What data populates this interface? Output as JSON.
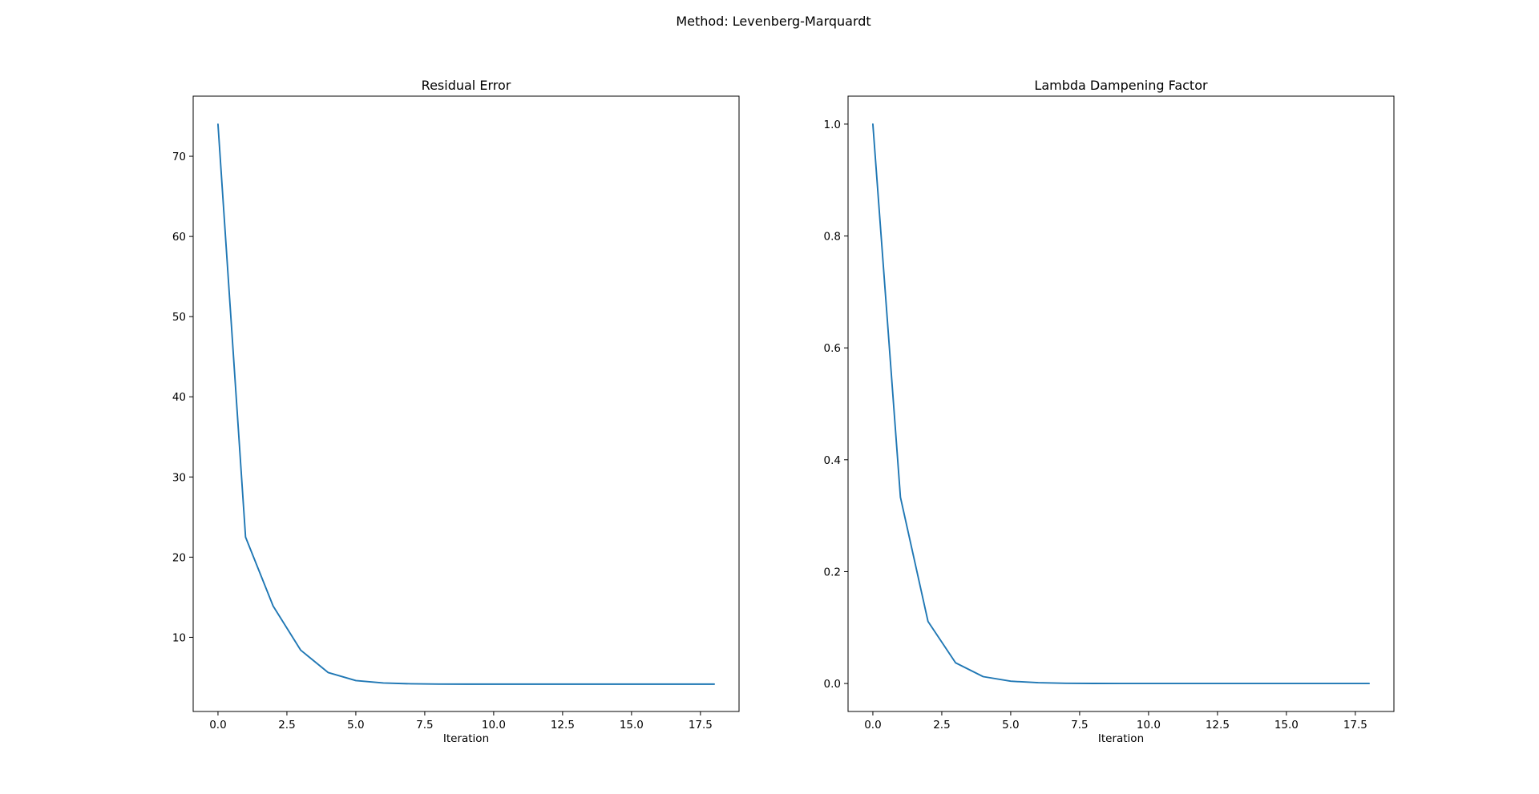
{
  "figure": {
    "suptitle": "Method: Levenberg-Marquardt"
  },
  "chart_data": [
    {
      "type": "line",
      "title": "Residual Error",
      "xlabel": "Iteration",
      "ylabel": "",
      "xlim": [
        -0.9,
        18.9
      ],
      "ylim": [
        0.75,
        77.5
      ],
      "xticks": [
        0,
        2.5,
        5,
        7.5,
        10,
        12.5,
        15,
        17.5
      ],
      "xtick_labels": [
        "0.0",
        "2.5",
        "5.0",
        "7.5",
        "10.0",
        "12.5",
        "15.0",
        "17.5"
      ],
      "yticks": [
        10,
        20,
        30,
        40,
        50,
        60,
        70
      ],
      "ytick_labels": [
        "10",
        "20",
        "30",
        "40",
        "50",
        "60",
        "70"
      ],
      "grid": false,
      "color": "#1f77b4",
      "series": [
        {
          "x": [
            0,
            1,
            2,
            3,
            4,
            5,
            6,
            7,
            8,
            9,
            10,
            11,
            12,
            13,
            14,
            15,
            16,
            17,
            18
          ],
          "values": [
            74.0,
            22.5,
            13.9,
            8.4,
            5.6,
            4.6,
            4.3,
            4.2,
            4.17,
            4.16,
            4.16,
            4.16,
            4.16,
            4.16,
            4.16,
            4.16,
            4.16,
            4.16,
            4.16
          ]
        }
      ]
    },
    {
      "type": "line",
      "title": "Lambda Dampening Factor",
      "xlabel": "Iteration",
      "ylabel": "",
      "xlim": [
        -0.9,
        18.9
      ],
      "ylim": [
        -0.05,
        1.05
      ],
      "xticks": [
        0,
        2.5,
        5,
        7.5,
        10,
        12.5,
        15,
        17.5
      ],
      "xtick_labels": [
        "0.0",
        "2.5",
        "5.0",
        "7.5",
        "10.0",
        "12.5",
        "15.0",
        "17.5"
      ],
      "yticks": [
        0,
        0.2,
        0.4,
        0.6,
        0.8,
        1.0
      ],
      "ytick_labels": [
        "0.0",
        "0.2",
        "0.4",
        "0.6",
        "0.8",
        "1.0"
      ],
      "grid": false,
      "color": "#1f77b4",
      "series": [
        {
          "x": [
            0,
            1,
            2,
            3,
            4,
            5,
            6,
            7,
            8,
            9,
            10,
            11,
            12,
            13,
            14,
            15,
            16,
            17,
            18
          ],
          "values": [
            1.0,
            0.333,
            0.111,
            0.037,
            0.0123,
            0.0041,
            0.0014,
            0.00046,
            0.00015,
            5e-05,
            2e-05,
            6e-06,
            2e-06,
            7e-07,
            2e-07,
            0.0,
            0.0,
            0.0,
            0.0
          ]
        }
      ]
    }
  ]
}
